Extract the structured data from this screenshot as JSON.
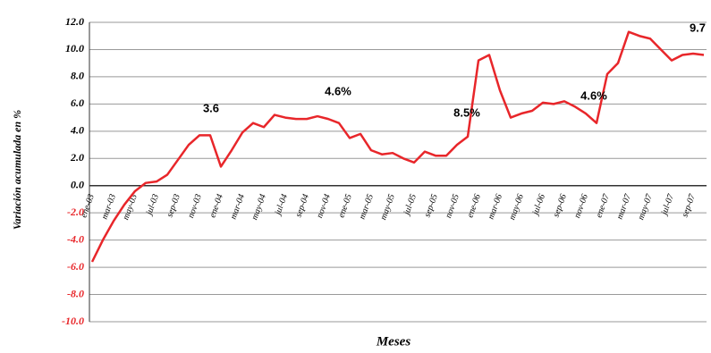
{
  "chart_data": {
    "type": "line",
    "y_label": "Variación acumulada en %",
    "x_label": "Meses",
    "categories": [
      "ene-03",
      null,
      "mar-03",
      null,
      "may-03",
      null,
      "jul-03",
      null,
      "sep-03",
      null,
      "nov-03",
      null,
      "ene-04",
      null,
      "mar-04",
      null,
      "may-04",
      null,
      "jul-04",
      null,
      "sep-04",
      null,
      "nov-04",
      null,
      "ene-05",
      null,
      "mar-05",
      null,
      "may-05",
      null,
      "jul-05",
      null,
      "sep-05",
      null,
      "nov-05",
      null,
      "ene-06",
      null,
      "mar-06",
      null,
      "may-06",
      null,
      "jul-06",
      null,
      "sep-06",
      null,
      "nov-06",
      null,
      "ene-07",
      null,
      "mar-07",
      null,
      "may-07",
      null,
      "jul-07",
      null,
      "sep-07",
      null
    ],
    "series": [
      {
        "name": "Variación acumulada",
        "color": "#e8262a",
        "values": [
          -5.6,
          -4.0,
          -2.6,
          -1.4,
          -0.4,
          0.2,
          0.3,
          0.8,
          1.9,
          3.0,
          3.7,
          3.7,
          1.4,
          2.6,
          3.9,
          4.6,
          4.3,
          5.2,
          5.0,
          4.9,
          4.9,
          5.1,
          4.9,
          4.6,
          3.5,
          3.8,
          2.6,
          2.3,
          2.4,
          2.0,
          1.7,
          2.5,
          2.2,
          2.2,
          3.0,
          3.6,
          9.2,
          9.6,
          7.0,
          5.0,
          5.3,
          5.5,
          6.1,
          6.0,
          6.2,
          5.8,
          5.3,
          4.6,
          8.2,
          9.0,
          11.3,
          11.0,
          10.8,
          10.0,
          9.2,
          9.6,
          9.7,
          9.6
        ]
      }
    ],
    "annotations": [
      "3.6",
      "4.6%",
      "8.5%",
      "4.6%",
      "9.7"
    ],
    "ylim": [
      -10,
      12
    ],
    "yticks": [
      {
        "value": 12,
        "label": "12.0"
      },
      {
        "value": 10,
        "label": "10.0"
      },
      {
        "value": 8,
        "label": "8.0"
      },
      {
        "value": 6,
        "label": "6.0"
      },
      {
        "value": 4,
        "label": "4.0"
      },
      {
        "value": 2,
        "label": "2.0"
      },
      {
        "value": 0,
        "label": "0.0"
      },
      {
        "value": -2,
        "label": "-2.0"
      },
      {
        "value": -4,
        "label": "-4.0"
      },
      {
        "value": -6,
        "label": "-6.0"
      },
      {
        "value": -8,
        "label": "-8.0"
      },
      {
        "value": -10,
        "label": "-10.0"
      }
    ],
    "grid": true,
    "negative_tick_color": "#e8262a"
  }
}
